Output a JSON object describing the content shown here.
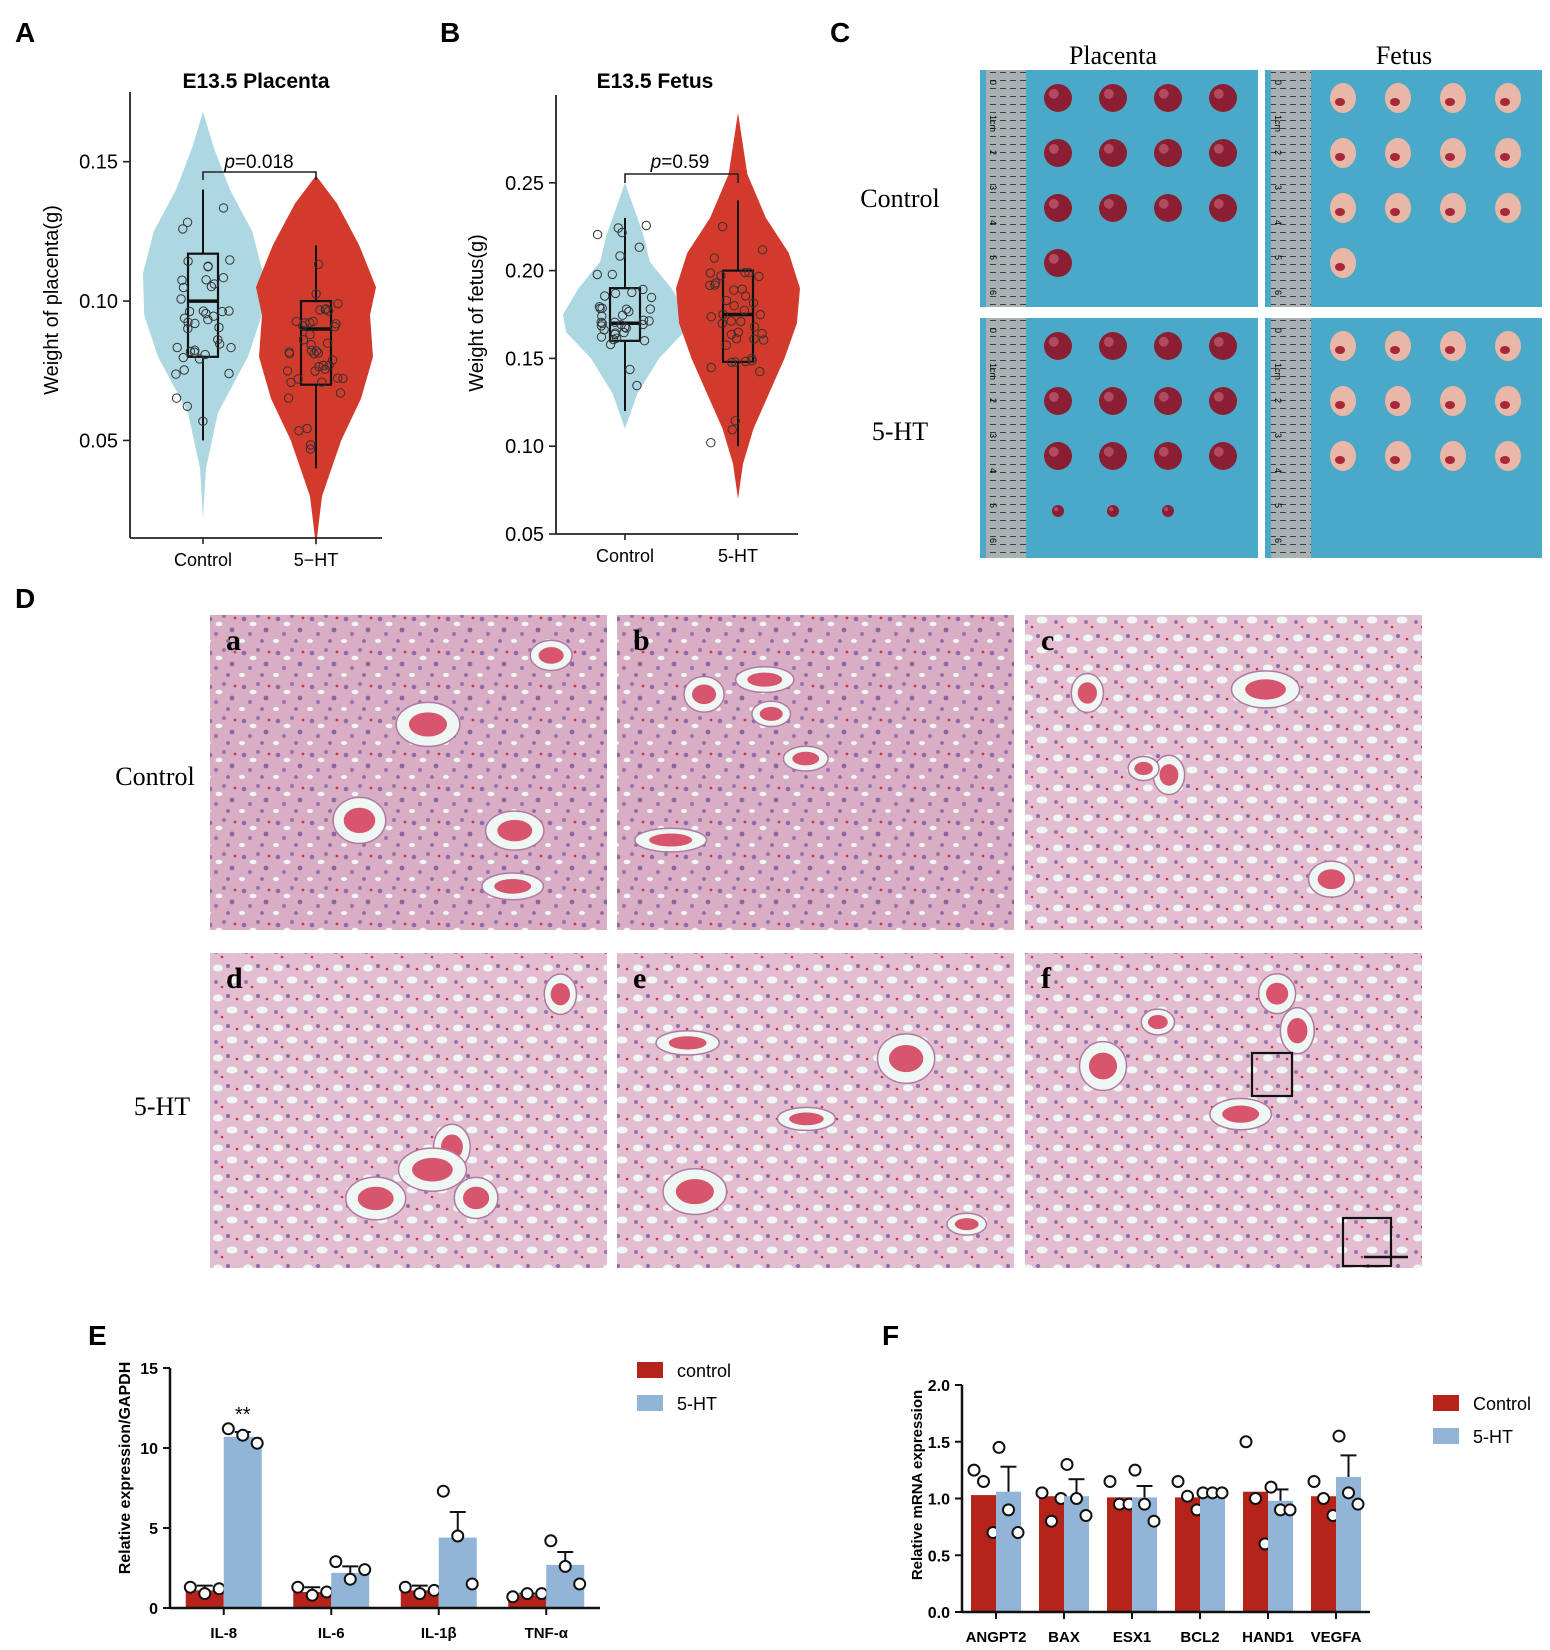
{
  "panels": {
    "A": "A",
    "B": "B",
    "C": "C",
    "D": "D",
    "E": "E",
    "F": "F"
  },
  "colors": {
    "control_violin": "#add8e2",
    "treatment_violin": "#d23a2c",
    "photo_blue": "#4aa8c9",
    "tissue_pink": "#dcb3c6",
    "bar_red": "#b5231a",
    "bar_blue": "#92b4d6"
  },
  "chart_data": [
    {
      "id": "A",
      "type": "violin",
      "title": "E13.5 Placenta",
      "xlabel": "",
      "ylabel": "Weight of placenta(g)",
      "categories": [
        "Control",
        "5−HT"
      ],
      "yticks": [
        "0.05",
        "0.10",
        "0.15"
      ],
      "ytick_values": [
        0.05,
        0.1,
        0.15
      ],
      "ylim": [
        0.015,
        0.175
      ],
      "annotation": {
        "italic": "p",
        "rest": "=0.018"
      },
      "box": [
        {
          "min": 0.05,
          "q1": 0.08,
          "median": 0.1,
          "q3": 0.117,
          "max": 0.14
        },
        {
          "min": 0.04,
          "q1": 0.07,
          "median": 0.09,
          "q3": 0.1,
          "max": 0.12
        }
      ],
      "violin_range": [
        [
          0.022,
          0.168
        ],
        [
          0.012,
          0.145
        ]
      ],
      "violin_profile": [
        [
          [
            0.022,
            0.0
          ],
          [
            0.04,
            0.05
          ],
          [
            0.06,
            0.25
          ],
          [
            0.08,
            0.75
          ],
          [
            0.095,
            0.98
          ],
          [
            0.11,
            1.0
          ],
          [
            0.125,
            0.82
          ],
          [
            0.14,
            0.45
          ],
          [
            0.155,
            0.18
          ],
          [
            0.168,
            0.0
          ]
        ],
        [
          [
            0.012,
            0.0
          ],
          [
            0.03,
            0.1
          ],
          [
            0.05,
            0.42
          ],
          [
            0.065,
            0.75
          ],
          [
            0.08,
            0.95
          ],
          [
            0.095,
            0.9
          ],
          [
            0.105,
            1.0
          ],
          [
            0.12,
            0.72
          ],
          [
            0.135,
            0.35
          ],
          [
            0.145,
            0.0
          ]
        ]
      ]
    },
    {
      "id": "B",
      "type": "violin",
      "title": "E13.5 Fetus",
      "xlabel": "",
      "ylabel": "Weight of fetus(g)",
      "categories": [
        "Control",
        "5-HT"
      ],
      "yticks": [
        "0.05",
        "0.10",
        "0.15",
        "0.20",
        "0.25"
      ],
      "ytick_values": [
        0.05,
        0.1,
        0.15,
        0.2,
        0.25
      ],
      "ylim": [
        0.05,
        0.3
      ],
      "annotation": {
        "italic": "p",
        "rest": "=0.59"
      },
      "box": [
        {
          "min": 0.12,
          "q1": 0.16,
          "median": 0.17,
          "q3": 0.19,
          "max": 0.23
        },
        {
          "min": 0.1,
          "q1": 0.148,
          "median": 0.175,
          "q3": 0.2,
          "max": 0.24
        }
      ],
      "violin_range": [
        [
          0.11,
          0.25
        ],
        [
          0.07,
          0.29
        ]
      ],
      "violin_profile": [
        [
          [
            0.11,
            0.0
          ],
          [
            0.13,
            0.2
          ],
          [
            0.15,
            0.55
          ],
          [
            0.165,
            0.95
          ],
          [
            0.175,
            1.0
          ],
          [
            0.19,
            0.75
          ],
          [
            0.205,
            0.4
          ],
          [
            0.22,
            0.3
          ],
          [
            0.235,
            0.15
          ],
          [
            0.25,
            0.0
          ]
        ],
        [
          [
            0.07,
            0.0
          ],
          [
            0.09,
            0.08
          ],
          [
            0.11,
            0.25
          ],
          [
            0.13,
            0.5
          ],
          [
            0.15,
            0.75
          ],
          [
            0.17,
            0.95
          ],
          [
            0.19,
            1.0
          ],
          [
            0.21,
            0.82
          ],
          [
            0.23,
            0.45
          ],
          [
            0.255,
            0.15
          ],
          [
            0.29,
            0.0
          ]
        ]
      ]
    },
    {
      "id": "E",
      "type": "bar",
      "title": "",
      "xlabel": "",
      "ylabel": "Relative expression/GAPDH",
      "categories": [
        "IL-8",
        "IL-6",
        "IL-1β",
        "TNF-α"
      ],
      "yticks": [
        "0",
        "5",
        "10",
        "15"
      ],
      "ytick_values": [
        0,
        5,
        10,
        15
      ],
      "ylim": [
        0,
        15
      ],
      "series": [
        {
          "name": "control",
          "values": [
            1.1,
            1.0,
            1.1,
            0.8
          ],
          "errors": [
            0.3,
            0.3,
            0.3,
            0.1
          ],
          "points": [
            [
              1.3,
              0.9,
              1.2
            ],
            [
              1.3,
              0.8,
              1.0
            ],
            [
              1.3,
              0.9,
              1.1
            ],
            [
              0.7,
              0.9,
              0.9
            ]
          ]
        },
        {
          "name": "5-HT",
          "values": [
            10.7,
            2.2,
            4.4,
            2.7
          ],
          "errors": [
            0.3,
            0.4,
            1.6,
            0.8
          ],
          "points": [
            [
              11.2,
              10.8,
              10.3
            ],
            [
              2.9,
              1.8,
              2.4
            ],
            [
              7.3,
              4.5,
              1.5
            ],
            [
              4.2,
              2.6,
              1.5
            ]
          ]
        }
      ],
      "significance": [
        {
          "category": 0,
          "label": "**"
        }
      ],
      "legend_position": "top-right"
    },
    {
      "id": "F",
      "type": "bar",
      "title": "",
      "xlabel": "",
      "ylabel": "Relative mRNA expression",
      "categories": [
        "ANGPT2",
        "BAX",
        "ESX1",
        "BCL2",
        "HAND1",
        "VEGFA"
      ],
      "yticks": [
        "0.0",
        "0.5",
        "1.0",
        "1.5",
        "2.0"
      ],
      "ytick_values": [
        0.0,
        0.5,
        1.0,
        1.5,
        2.0
      ],
      "ylim": [
        0,
        2.0
      ],
      "series": [
        {
          "name": "Control",
          "values": [
            1.03,
            1.02,
            1.01,
            1.01,
            1.06,
            1.02
          ],
          "errors": [
            0,
            0,
            0,
            0,
            0,
            0
          ],
          "points": [
            [
              1.25,
              1.15,
              0.7
            ],
            [
              1.05,
              0.8,
              1.0
            ],
            [
              1.15,
              0.95,
              0.95
            ],
            [
              1.15,
              1.02,
              0.9
            ],
            [
              1.5,
              1.0,
              0.6
            ],
            [
              1.15,
              1.0,
              0.85
            ]
          ]
        },
        {
          "name": "5-HT",
          "values": [
            1.06,
            1.02,
            1.01,
            1.02,
            0.98,
            1.19
          ],
          "errors": [
            0.22,
            0.15,
            0.1,
            0.05,
            0.1,
            0.19
          ],
          "points": [
            [
              1.45,
              0.9,
              0.7
            ],
            [
              1.3,
              1.0,
              0.85
            ],
            [
              1.25,
              0.95,
              0.8
            ],
            [
              1.05,
              1.05,
              1.05
            ],
            [
              1.1,
              0.9,
              0.9
            ],
            [
              1.55,
              1.05,
              0.95
            ]
          ]
        }
      ],
      "legend_position": "top-right"
    }
  ],
  "panel_C": {
    "col_labels": [
      "Placenta",
      "Fetus"
    ],
    "row_labels": [
      "Control",
      "5-HT"
    ],
    "ruler_marks": [
      "0",
      "1cm",
      "2",
      "3",
      "4",
      "5",
      "6"
    ]
  },
  "panel_D": {
    "row_labels": [
      "Control",
      "5-HT"
    ],
    "image_letters": [
      "a",
      "b",
      "c",
      "d",
      "e",
      "f"
    ]
  }
}
